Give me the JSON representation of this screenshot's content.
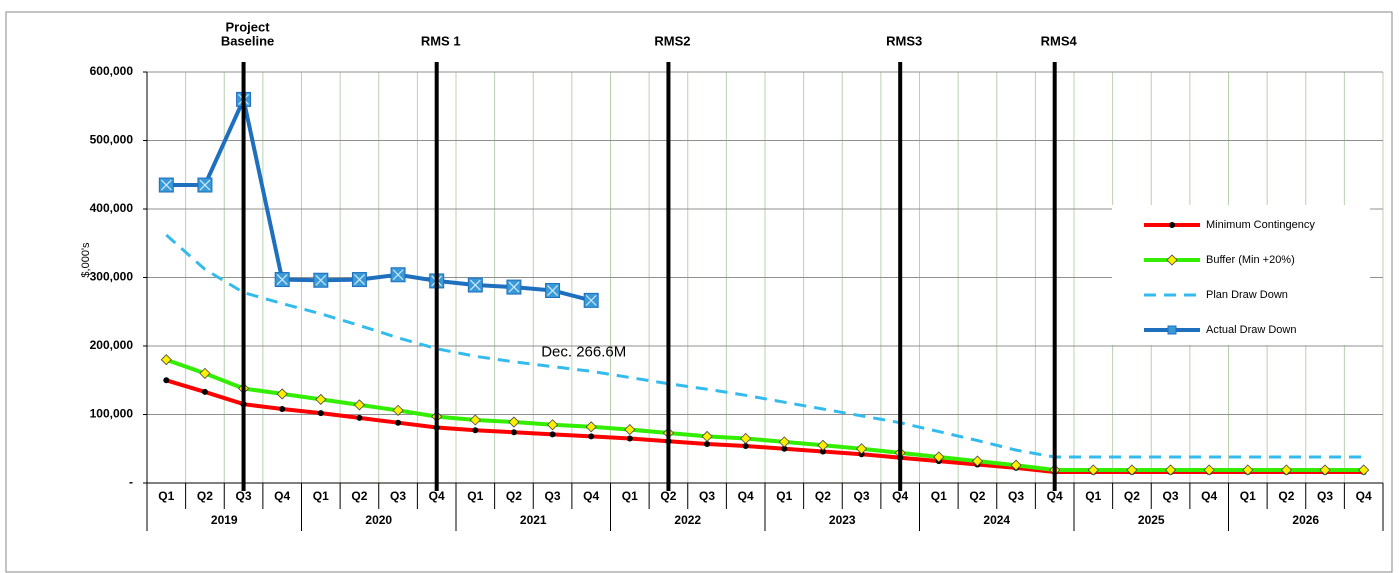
{
  "chart_data": {
    "type": "line",
    "y_label": "$,000's",
    "categories": [
      "Q1",
      "Q2",
      "Q3",
      "Q4",
      "Q1",
      "Q2",
      "Q3",
      "Q4",
      "Q1",
      "Q2",
      "Q3",
      "Q4",
      "Q1",
      "Q2",
      "Q3",
      "Q4",
      "Q1",
      "Q2",
      "Q3",
      "Q4",
      "Q1",
      "Q2",
      "Q3",
      "Q4",
      "Q1",
      "Q2",
      "Q3",
      "Q4",
      "Q1",
      "Q2",
      "Q3",
      "Q4"
    ],
    "years": [
      "2019",
      "2020",
      "2021",
      "2022",
      "2023",
      "2024",
      "2025",
      "2026"
    ],
    "ylim": [
      0,
      600000
    ],
    "yticks": [
      {
        "value": 0,
        "label": "-"
      },
      {
        "value": 100000,
        "label": "100,000"
      },
      {
        "value": 200000,
        "label": "200,000"
      },
      {
        "value": 300000,
        "label": "300,000"
      },
      {
        "value": 400000,
        "label": "400,000"
      },
      {
        "value": 500000,
        "label": "500,000"
      },
      {
        "value": 600000,
        "label": "600,000"
      }
    ],
    "grid": true,
    "legend": "right",
    "series": [
      {
        "name": "Minimum Contingency",
        "color": "#ff0000",
        "marker": "circle",
        "values": [
          150000,
          133000,
          115000,
          108000,
          102000,
          95000,
          88000,
          81000,
          77000,
          74000,
          71000,
          68000,
          65000,
          61000,
          57000,
          54000,
          50000,
          46000,
          42000,
          37000,
          32000,
          27000,
          22000,
          16000,
          16000,
          16000,
          16000,
          16000,
          16000,
          16000,
          16000,
          16000
        ]
      },
      {
        "name": "Buffer (Min +20%)",
        "color": "#33ee00",
        "marker": "diamond",
        "values": [
          180000,
          160000,
          138000,
          130000,
          122000,
          114000,
          106000,
          97000,
          92000,
          89000,
          85000,
          82000,
          78000,
          73000,
          68000,
          65000,
          60000,
          55000,
          50000,
          44000,
          38000,
          32000,
          26000,
          19000,
          19000,
          19000,
          19000,
          19000,
          19000,
          19000,
          19000,
          19000
        ]
      },
      {
        "name": "Plan Draw Down",
        "color": "#33bbee",
        "dash": true,
        "values": [
          362000,
          312000,
          278000,
          262000,
          247000,
          230000,
          212000,
          196000,
          185000,
          177000,
          170000,
          163000,
          154000,
          145000,
          137000,
          128000,
          118000,
          108000,
          98000,
          88000,
          75000,
          62000,
          48000,
          38000,
          38000,
          38000,
          38000,
          38000,
          38000,
          38000,
          38000,
          38000
        ]
      },
      {
        "name": "Actual Draw Down",
        "color": "#1f6fbf",
        "marker": "square",
        "values": [
          435000,
          435000,
          560000,
          297000,
          296000,
          297000,
          304000,
          295000,
          289000,
          286000,
          281000,
          266600,
          null,
          null,
          null,
          null,
          null,
          null,
          null,
          null,
          null,
          null,
          null,
          null,
          null,
          null,
          null,
          null,
          null,
          null,
          null,
          null
        ]
      }
    ],
    "milestones": [
      {
        "label": [
          "Project",
          "Baseline"
        ],
        "year": "2019",
        "quarter": "Q3"
      },
      {
        "label": [
          "RMS 1"
        ],
        "year": "2020",
        "quarter": "Q4"
      },
      {
        "label": [
          "RMS2"
        ],
        "year": "2022",
        "quarter": "Q2"
      },
      {
        "label": [
          "RMS3"
        ],
        "year": "2023",
        "quarter": "Q4"
      },
      {
        "label": [
          "RMS4"
        ],
        "year": "2024",
        "quarter": "Q4"
      }
    ],
    "annotation": "Dec. 266.6M"
  }
}
